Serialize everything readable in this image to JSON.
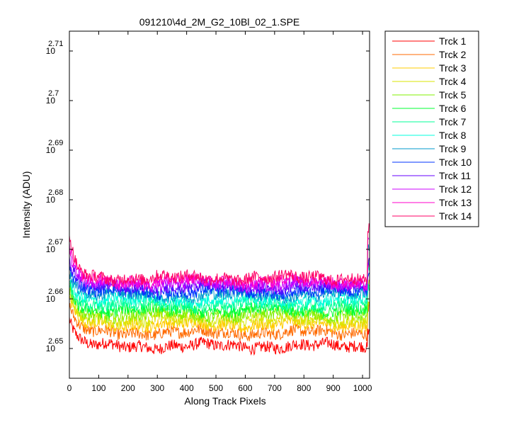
{
  "chart_data": {
    "type": "line",
    "title": "091210\\4d_2M_G2_10Bl_02_1.SPE",
    "xlabel": "Along Track Pixels",
    "ylabel": "Intensity (ADU)",
    "xlim": [
      0,
      1024
    ],
    "ylim_log10": [
      2.644,
      2.714
    ],
    "yscale": "log",
    "x_ticks": [
      0,
      100,
      200,
      300,
      400,
      500,
      600,
      700,
      800,
      900,
      1000
    ],
    "y_ticks": [
      {
        "base": "10",
        "exp": "2.65",
        "value": 2.65
      },
      {
        "base": "10",
        "exp": "2.66",
        "value": 2.66
      },
      {
        "base": "10",
        "exp": "2.67",
        "value": 2.67
      },
      {
        "base": "10",
        "exp": "2.68",
        "value": 2.68
      },
      {
        "base": "10",
        "exp": "2.69",
        "value": 2.69
      },
      {
        "base": "10",
        "exp": "2.7",
        "value": 2.7
      },
      {
        "base": "10",
        "exp": "2.71",
        "value": 2.71
      }
    ],
    "grid": false,
    "legend_position": "outside-right",
    "noise_log10_amplitude": 0.0012,
    "series": [
      {
        "name": "Trck 1",
        "color": "#ff0000",
        "level_log10": 2.6505,
        "start_log10": 2.656
      },
      {
        "name": "Trck 2",
        "color": "#ff6a00",
        "level_log10": 2.6532,
        "start_log10": 2.6585
      },
      {
        "name": "Trck 3",
        "color": "#ffcc00",
        "level_log10": 2.6548,
        "start_log10": 2.66
      },
      {
        "name": "Trck 4",
        "color": "#d8e600",
        "level_log10": 2.6558,
        "start_log10": 2.661
      },
      {
        "name": "Trck 5",
        "color": "#80f000",
        "level_log10": 2.6568,
        "start_log10": 2.662
      },
      {
        "name": "Trck 6",
        "color": "#00ff33",
        "level_log10": 2.6578,
        "start_log10": 2.663
      },
      {
        "name": "Trck 7",
        "color": "#00ff99",
        "level_log10": 2.6588,
        "start_log10": 2.664
      },
      {
        "name": "Trck 8",
        "color": "#00ffdd",
        "level_log10": 2.6598,
        "start_log10": 2.665
      },
      {
        "name": "Trck 9",
        "color": "#0099cc",
        "level_log10": 2.6608,
        "start_log10": 2.666
      },
      {
        "name": "Trck 10",
        "color": "#0033ff",
        "level_log10": 2.6615,
        "start_log10": 2.667
      },
      {
        "name": "Trck 11",
        "color": "#6600ff",
        "level_log10": 2.6624,
        "start_log10": 2.668
      },
      {
        "name": "Trck 12",
        "color": "#cc00ff",
        "level_log10": 2.663,
        "start_log10": 2.669
      },
      {
        "name": "Trck 13",
        "color": "#ff00cc",
        "level_log10": 2.6636,
        "start_log10": 2.67
      },
      {
        "name": "Trck 14",
        "color": "#ff0066",
        "level_log10": 2.6643,
        "start_log10": 2.6725
      }
    ]
  }
}
